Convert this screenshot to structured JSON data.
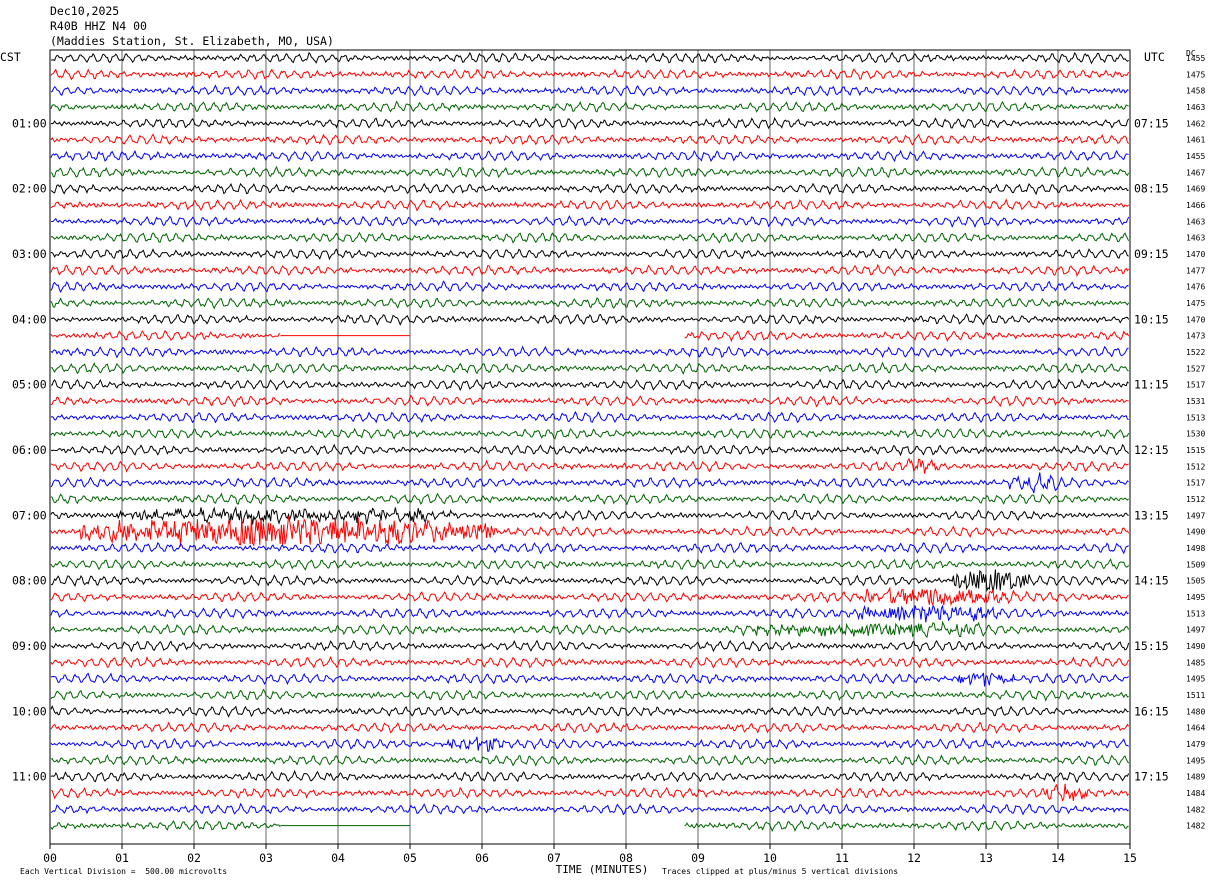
{
  "header": {
    "date": "Dec10,2025",
    "channel": "R40B HHZ N4 00",
    "station": "(Maddies Station, St. Elizabeth, MO, USA)"
  },
  "labels": {
    "left_tz": "CST",
    "right_tz": "UTC",
    "dc": "DC"
  },
  "footer": {
    "xlabel": "TIME (MINUTES)",
    "scale": "Each Vertical Division =  500.00 microvolts",
    "clip": "Traces clipped at plus/minus 5 vertical divisions"
  },
  "colors": {
    "cycle": [
      "#000000",
      "#ff0000",
      "#0000ff",
      "#006400"
    ]
  },
  "chart_data": {
    "type": "line",
    "xlabel": "TIME (MINUTES)",
    "xlim": [
      0,
      15
    ],
    "x_ticks": [
      "00",
      "01",
      "02",
      "03",
      "04",
      "05",
      "06",
      "07",
      "08",
      "09",
      "10",
      "11",
      "12",
      "13",
      "14",
      "15"
    ],
    "rows_per_hour": 4,
    "left_hour_labels": [
      "01:00",
      "02:00",
      "03:00",
      "04:00",
      "05:00",
      "06:00",
      "07:00",
      "08:00",
      "09:00",
      "10:00",
      "11:00"
    ],
    "right_hour_labels": [
      "07:15",
      "08:15",
      "09:15",
      "10:15",
      "11:15",
      "12:15",
      "13:15",
      "14:15",
      "15:15",
      "16:15",
      "17:15"
    ],
    "dc_offsets": [
      "1455",
      "1475",
      "1458",
      "1463",
      "1462",
      "1461",
      "1455",
      "1467",
      "1469",
      "1466",
      "1463",
      "1463",
      "1470",
      "1477",
      "1476",
      "1475",
      "1470",
      "1473",
      "1522",
      "1527",
      "1517",
      "1531",
      "1513",
      "1530",
      "1515",
      "1512",
      "1517",
      "1512",
      "1497",
      "1490",
      "1498",
      "1509",
      "1505",
      "1495",
      "1513",
      "1497",
      "1490",
      "1485",
      "1495",
      "1511",
      "1480",
      "1464",
      "1479",
      "1495",
      "1489",
      "1484",
      "1482",
      "1482"
    ],
    "gaps": [
      {
        "row": 17,
        "from_min": 3.2,
        "to_min": 8.8
      },
      {
        "row": 47,
        "from_min": 3.2,
        "to_min": 8.8
      }
    ],
    "events": [
      {
        "row": 29,
        "from_min": 0.4,
        "to_min": 6.2,
        "amp": 3.0
      },
      {
        "row": 28,
        "from_min": 0.9,
        "to_min": 5.6,
        "amp": 1.4
      },
      {
        "row": 32,
        "from_min": 12.5,
        "to_min": 13.6,
        "amp": 2.6
      },
      {
        "row": 33,
        "from_min": 11.2,
        "to_min": 13.4,
        "amp": 1.9
      },
      {
        "row": 34,
        "from_min": 11.2,
        "to_min": 13.2,
        "amp": 1.8
      },
      {
        "row": 35,
        "from_min": 9.6,
        "to_min": 13.0,
        "amp": 1.3
      },
      {
        "row": 25,
        "from_min": 11.8,
        "to_min": 12.3,
        "amp": 1.6
      },
      {
        "row": 26,
        "from_min": 13.3,
        "to_min": 14.1,
        "amp": 1.4
      },
      {
        "row": 42,
        "from_min": 5.5,
        "to_min": 6.3,
        "amp": 1.5
      },
      {
        "row": 45,
        "from_min": 13.8,
        "to_min": 14.4,
        "amp": 1.5
      },
      {
        "row": 38,
        "from_min": 12.6,
        "to_min": 13.4,
        "amp": 1.4
      }
    ]
  }
}
